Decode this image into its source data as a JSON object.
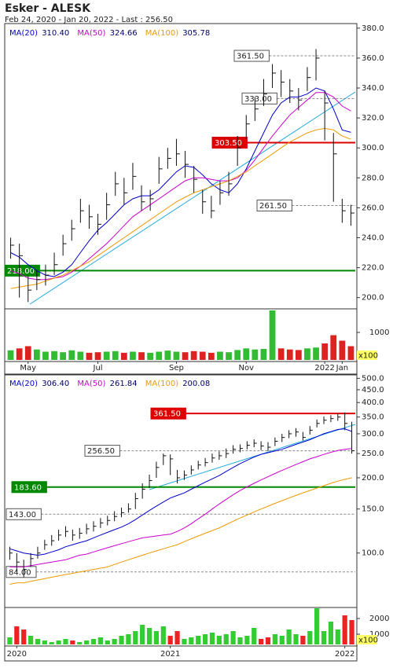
{
  "header": {
    "title": "Esker - ALESK",
    "subtitle": "Feb 24, 2020 - Jan 20, 2022 - Last : 256.50"
  },
  "chart_data": [
    {
      "type": "ohlc",
      "log": false,
      "categories": [
        null,
        null,
        "May",
        null,
        null,
        null,
        null,
        null,
        null,
        null,
        "Jul",
        null,
        null,
        null,
        null,
        null,
        null,
        null,
        null,
        "Sep",
        null,
        null,
        null,
        null,
        null,
        null,
        null,
        "Nov",
        null,
        null,
        null,
        null,
        null,
        null,
        null,
        null,
        "2022",
        null,
        "Jan",
        null
      ],
      "close": [
        235,
        228,
        205,
        212,
        215,
        222,
        236,
        246,
        258,
        254,
        249,
        262,
        276,
        270,
        281,
        264,
        266,
        286,
        293,
        296,
        289,
        279,
        264,
        258,
        270,
        276,
        300,
        316,
        326,
        336,
        350,
        344,
        338,
        332,
        347,
        360,
        330,
        296,
        258,
        256.5
      ],
      "high": [
        240,
        236,
        215,
        218,
        222,
        230,
        242,
        252,
        266,
        262,
        256,
        270,
        284,
        280,
        290,
        275,
        272,
        294,
        300,
        306,
        298,
        288,
        272,
        268,
        278,
        284,
        308,
        322,
        334,
        346,
        356,
        352,
        346,
        340,
        354,
        366,
        338,
        310,
        266,
        262
      ],
      "low": [
        226,
        200,
        197,
        205,
        208,
        215,
        228,
        238,
        250,
        246,
        242,
        252,
        268,
        262,
        272,
        258,
        258,
        276,
        286,
        288,
        280,
        270,
        256,
        253,
        262,
        268,
        288,
        306,
        318,
        328,
        340,
        334,
        330,
        325,
        338,
        345,
        305,
        264,
        250,
        248
      ],
      "series": [
        {
          "name": "MA(20)",
          "color": "#0000cc",
          "last": "310.40",
          "values": [
            230,
            227,
            222,
            218,
            215,
            214,
            217,
            222,
            230,
            238,
            245,
            250,
            256,
            262,
            266,
            268,
            268,
            272,
            278,
            284,
            288,
            287,
            282,
            276,
            272,
            270,
            276,
            286,
            298,
            310,
            322,
            330,
            334,
            334,
            336,
            340,
            338,
            326,
            312,
            310.4
          ]
        },
        {
          "name": "MA(50)",
          "color": "#cc00cc",
          "last": "324.66",
          "values": [
            218,
            216,
            213,
            212,
            212,
            213,
            214,
            217,
            221,
            226,
            231,
            236,
            242,
            248,
            254,
            258,
            262,
            266,
            270,
            274,
            278,
            280,
            280,
            279,
            278,
            278,
            280,
            285,
            292,
            300,
            308,
            315,
            322,
            327,
            332,
            337,
            337,
            334,
            328,
            324.66
          ]
        },
        {
          "name": "MA(100)",
          "color": "#ee9900",
          "last": "305.78",
          "values": [
            206,
            207,
            208,
            209,
            211,
            213,
            215,
            218,
            221,
            224,
            228,
            232,
            236,
            240,
            244,
            248,
            252,
            256,
            260,
            264,
            267,
            270,
            272,
            274,
            276,
            278,
            281,
            284,
            288,
            292,
            296,
            300,
            304,
            307,
            310,
            312,
            313,
            312,
            308,
            305.78
          ]
        }
      ],
      "ylim": [
        193,
        382
      ],
      "yticks": [
        {
          "value": 200,
          "label": "200.0"
        },
        {
          "value": 220,
          "label": "220.0"
        },
        {
          "value": 240,
          "label": "240.0"
        },
        {
          "value": 260,
          "label": "260.0"
        },
        {
          "value": 280,
          "label": "280.0"
        },
        {
          "value": 300,
          "label": "300.0"
        },
        {
          "value": 320,
          "label": "320.0"
        },
        {
          "value": 340,
          "label": "340.0"
        },
        {
          "value": 360,
          "label": "360.0"
        },
        {
          "value": 380,
          "label": "380.0"
        }
      ],
      "levels": [
        {
          "value": 361.5,
          "label": "361.50",
          "color": "#888888",
          "filled": false
        },
        {
          "value": 333,
          "label": "333.00",
          "color": "#888888",
          "filled": false
        },
        {
          "value": 303.5,
          "label": "303.50",
          "color": "#dd0000",
          "filled": true
        },
        {
          "value": 261.5,
          "label": "261.50",
          "color": "#888888",
          "filled": false
        },
        {
          "value": 218,
          "label": "218.00",
          "color": "#008800",
          "filled": true
        }
      ],
      "volume": {
        "values": [
          350,
          420,
          500,
          380,
          300,
          320,
          280,
          350,
          300,
          260,
          280,
          300,
          320,
          260,
          300,
          280,
          260,
          300,
          340,
          300,
          280,
          320,
          300,
          260,
          300,
          280,
          360,
          420,
          380,
          400,
          1800,
          420,
          380,
          360,
          420,
          450,
          600,
          900,
          700,
          500
        ],
        "ylim": [
          0,
          1800
        ],
        "yticks": [
          1000
        ],
        "unit": "x100",
        "colors": [
          "#33bb33",
          "#dd2222"
        ]
      }
    },
    {
      "type": "ohlc",
      "log": true,
      "categories": [
        null,
        "2020",
        null,
        null,
        null,
        null,
        null,
        null,
        null,
        null,
        null,
        null,
        null,
        null,
        null,
        null,
        null,
        null,
        null,
        null,
        null,
        null,
        null,
        "2021",
        null,
        null,
        null,
        null,
        null,
        null,
        null,
        null,
        null,
        null,
        null,
        null,
        null,
        null,
        null,
        null,
        null,
        null,
        null,
        null,
        null,
        null,
        null,
        null,
        "2022",
        null
      ],
      "close": [
        100,
        92,
        86,
        95,
        100,
        108,
        112,
        118,
        122,
        118,
        120,
        125,
        128,
        132,
        135,
        140,
        145,
        150,
        165,
        180,
        195,
        220,
        245,
        238,
        200,
        205,
        215,
        225,
        230,
        240,
        245,
        250,
        260,
        262,
        270,
        275,
        268,
        265,
        280,
        290,
        300,
        305,
        290,
        310,
        330,
        340,
        345,
        350,
        330,
        256.5
      ],
      "high": [
        106,
        100,
        94,
        100,
        106,
        113,
        118,
        124,
        128,
        124,
        126,
        131,
        134,
        138,
        141,
        147,
        152,
        158,
        174,
        190,
        206,
        232,
        250,
        248,
        215,
        214,
        224,
        234,
        240,
        250,
        255,
        262,
        270,
        272,
        280,
        285,
        280,
        278,
        290,
        300,
        310,
        316,
        305,
        322,
        342,
        352,
        356,
        362,
        365,
        335
      ],
      "low": [
        94,
        84,
        80,
        88,
        95,
        103,
        107,
        112,
        116,
        112,
        114,
        119,
        122,
        126,
        129,
        134,
        139,
        145,
        150,
        165,
        182,
        200,
        225,
        205,
        190,
        196,
        206,
        216,
        222,
        230,
        236,
        240,
        250,
        253,
        260,
        265,
        258,
        256,
        268,
        278,
        288,
        292,
        282,
        298,
        318,
        328,
        334,
        338,
        310,
        250
      ],
      "series": [
        {
          "name": "MA(20)",
          "color": "#0000cc",
          "last": "306.40",
          "values": [
            104,
            102,
            100,
            99,
            98,
            99,
            101,
            103,
            106,
            108,
            110,
            112,
            115,
            118,
            121,
            124,
            127,
            131,
            136,
            142,
            148,
            154,
            160,
            166,
            170,
            174,
            180,
            186,
            192,
            198,
            204,
            212,
            220,
            228,
            235,
            242,
            248,
            252,
            256,
            260,
            266,
            272,
            278,
            284,
            292,
            300,
            306,
            312,
            314,
            306.4
          ]
        },
        {
          "name": "MA(50)",
          "color": "#cc00cc",
          "last": "261.84",
          "values": [
            88,
            88,
            88,
            89,
            90,
            91,
            92,
            93,
            94,
            96,
            98,
            99,
            101,
            103,
            105,
            107,
            109,
            111,
            113,
            115,
            116,
            117,
            118,
            119,
            122,
            126,
            131,
            137,
            143,
            150,
            157,
            164,
            171,
            178,
            184,
            190,
            196,
            202,
            208,
            214,
            220,
            226,
            232,
            238,
            243,
            248,
            253,
            257,
            260,
            261.84
          ]
        },
        {
          "name": "MA(100)",
          "color": "#ee9900",
          "last": "200.08",
          "values": [
            75,
            76,
            76,
            77,
            78,
            79,
            80,
            81,
            82,
            83,
            84,
            85,
            86,
            87,
            88,
            90,
            92,
            94,
            96,
            98,
            100,
            102,
            104,
            106,
            108,
            111,
            114,
            117,
            120,
            123,
            126,
            130,
            134,
            138,
            142,
            146,
            150,
            154,
            158,
            162,
            166,
            170,
            174,
            178,
            182,
            186,
            190,
            194,
            197,
            200.08
          ]
        }
      ],
      "ylim": [
        61,
        505
      ],
      "yticks": [
        {
          "value": 100,
          "label": "100.0"
        },
        {
          "value": 150,
          "label": "150.0"
        },
        {
          "value": 200,
          "label": "200.0"
        },
        {
          "value": 250,
          "label": "250.0"
        },
        {
          "value": 300,
          "label": "300.0"
        },
        {
          "value": 350,
          "label": "350.0"
        },
        {
          "value": 400,
          "label": "400.0"
        },
        {
          "value": 450,
          "label": "450.0"
        },
        {
          "value": 500,
          "label": "500.0"
        }
      ],
      "levels": [
        {
          "value": 361.5,
          "label": "361.50",
          "color": "#dd0000",
          "filled": true
        },
        {
          "value": 256.5,
          "label": "256.50",
          "color": "#888888",
          "filled": false
        },
        {
          "value": 183.6,
          "label": "183.60",
          "color": "#008800",
          "filled": true
        },
        {
          "value": 143,
          "label": "143.00",
          "color": "#888888",
          "filled": false
        },
        {
          "value": 84,
          "label": "84.00",
          "color": "#888888",
          "filled": false
        }
      ],
      "volume": {
        "values": [
          800,
          1500,
          1300,
          900,
          700,
          600,
          500,
          600,
          700,
          600,
          500,
          600,
          700,
          800,
          600,
          700,
          900,
          1000,
          1200,
          1600,
          1400,
          1200,
          1500,
          900,
          1200,
          700,
          800,
          900,
          1000,
          1100,
          900,
          1000,
          1200,
          800,
          900,
          1400,
          700,
          800,
          1000,
          900,
          1300,
          1000,
          900,
          1200,
          2700,
          1200,
          1800,
          1300,
          2200,
          1900
        ],
        "ylim": [
          350,
          2650
        ],
        "yticks": [
          1000,
          2000
        ],
        "unit": "x100",
        "colors": [
          "#33cc33",
          "#ee2222"
        ]
      }
    }
  ]
}
